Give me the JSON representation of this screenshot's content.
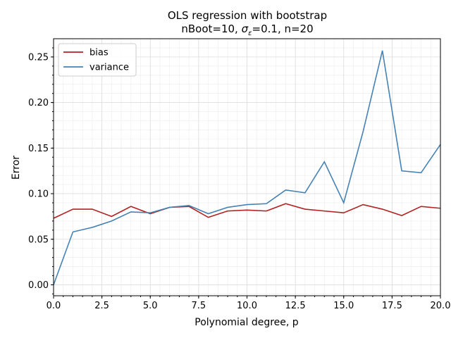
{
  "chart_data": {
    "type": "line",
    "title_line1": "OLS regression with bootstrap",
    "title_line2_parts": {
      "prefix": "nBoot=10,  ",
      "sigma": "σ",
      "sigma_sub": "ε",
      "suffix": "=0.1,  n=20"
    },
    "xlabel": "Polynomial degree, p",
    "ylabel": "Error",
    "xlim": [
      0,
      20
    ],
    "ylim": [
      -0.012,
      0.27
    ],
    "xticks": [
      0,
      2.5,
      5,
      7.5,
      10,
      12.5,
      15,
      17.5,
      20
    ],
    "xtick_labels": [
      "0.0",
      "2.5",
      "5.0",
      "7.5",
      "10.0",
      "12.5",
      "15.0",
      "17.5",
      "20.0"
    ],
    "yticks": [
      0,
      0.05,
      0.1,
      0.15,
      0.2,
      0.25
    ],
    "ytick_labels": [
      "0.00",
      "0.05",
      "0.10",
      "0.15",
      "0.20",
      "0.25"
    ],
    "grid": true,
    "legend_position": "top-left",
    "x": [
      0,
      1,
      2,
      3,
      4,
      5,
      6,
      7,
      8,
      9,
      10,
      11,
      12,
      13,
      14,
      15,
      16,
      17,
      18,
      19,
      20
    ],
    "series": [
      {
        "name": "bias",
        "color": "#b22222",
        "values": [
          0.073,
          0.083,
          0.083,
          0.075,
          0.086,
          0.078,
          0.085,
          0.086,
          0.074,
          0.081,
          0.082,
          0.081,
          0.089,
          0.083,
          0.081,
          0.079,
          0.088,
          0.083,
          0.076,
          0.086,
          0.084
        ]
      },
      {
        "name": "variance",
        "color": "#4682b4",
        "values": [
          0.0,
          0.058,
          0.063,
          0.07,
          0.08,
          0.079,
          0.085,
          0.087,
          0.078,
          0.085,
          0.088,
          0.089,
          0.104,
          0.101,
          0.135,
          0.09,
          0.168,
          0.257,
          0.125,
          0.123,
          0.154
        ]
      }
    ]
  }
}
